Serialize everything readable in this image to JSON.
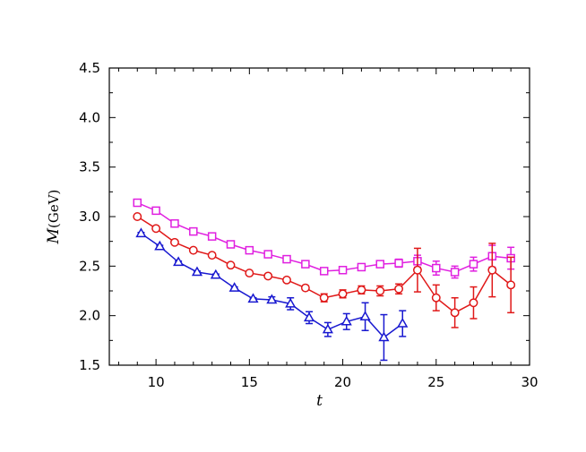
{
  "chart_data": {
    "type": "line",
    "xlabel": "t",
    "ylabel": "M",
    "ylabel_unit": "(GeV)",
    "xlim": [
      7.5,
      30
    ],
    "ylim": [
      1.5,
      4.5
    ],
    "xticks": [
      10,
      15,
      20,
      25,
      30
    ],
    "yticks": [
      1.5,
      2.0,
      2.5,
      3.0,
      3.5,
      4.0,
      4.5
    ],
    "xtick_labels": [
      "10",
      "15",
      "20",
      "25",
      "30"
    ],
    "ytick_labels": [
      "1.5",
      "2.0",
      "2.5",
      "3.0",
      "3.5",
      "4.0",
      "4.5"
    ],
    "grid": false,
    "legend": "none",
    "series": [
      {
        "marker": "square",
        "color": "#e020e0",
        "x": [
          9,
          10,
          11,
          12,
          13,
          14,
          15,
          16,
          17,
          18,
          19,
          20,
          21,
          22,
          23,
          24,
          25,
          26,
          27,
          28,
          29
        ],
        "y": [
          3.14,
          3.06,
          2.93,
          2.85,
          2.8,
          2.72,
          2.66,
          2.62,
          2.57,
          2.52,
          2.45,
          2.46,
          2.49,
          2.52,
          2.53,
          2.55,
          2.48,
          2.44,
          2.52,
          2.6,
          2.58
        ],
        "err": [
          0.01,
          0.01,
          0.01,
          0.01,
          0.01,
          0.01,
          0.01,
          0.01,
          0.01,
          0.01,
          0.02,
          0.02,
          0.02,
          0.03,
          0.04,
          0.06,
          0.07,
          0.06,
          0.07,
          0.11,
          0.11
        ]
      },
      {
        "marker": "circle",
        "color": "#e01818",
        "x": [
          9,
          10,
          11,
          12,
          13,
          14,
          15,
          16,
          17,
          18,
          19,
          20,
          21,
          22,
          23,
          24,
          25,
          26,
          27,
          28,
          29
        ],
        "y": [
          3.0,
          2.88,
          2.74,
          2.66,
          2.61,
          2.51,
          2.43,
          2.4,
          2.36,
          2.28,
          2.18,
          2.22,
          2.26,
          2.25,
          2.27,
          2.46,
          2.18,
          2.03,
          2.13,
          2.46,
          2.31
        ],
        "err": [
          0.01,
          0.01,
          0.01,
          0.01,
          0.01,
          0.01,
          0.01,
          0.01,
          0.02,
          0.02,
          0.04,
          0.04,
          0.04,
          0.05,
          0.05,
          0.22,
          0.13,
          0.15,
          0.16,
          0.27,
          0.28
        ]
      },
      {
        "marker": "triangle",
        "color": "#1818d0",
        "x": [
          9.2,
          10.2,
          11.2,
          12.2,
          13.2,
          14.2,
          15.2,
          16.2,
          17.2,
          18.2,
          19.2,
          20.2,
          21.2,
          22.2,
          23.2
        ],
        "y": [
          2.83,
          2.7,
          2.54,
          2.44,
          2.41,
          2.28,
          2.17,
          2.16,
          2.12,
          1.98,
          1.86,
          1.94,
          1.99,
          1.78,
          1.92
        ],
        "err": [
          0.01,
          0.01,
          0.01,
          0.01,
          0.01,
          0.01,
          0.01,
          0.03,
          0.06,
          0.06,
          0.07,
          0.08,
          0.14,
          0.23,
          0.13
        ]
      }
    ]
  }
}
